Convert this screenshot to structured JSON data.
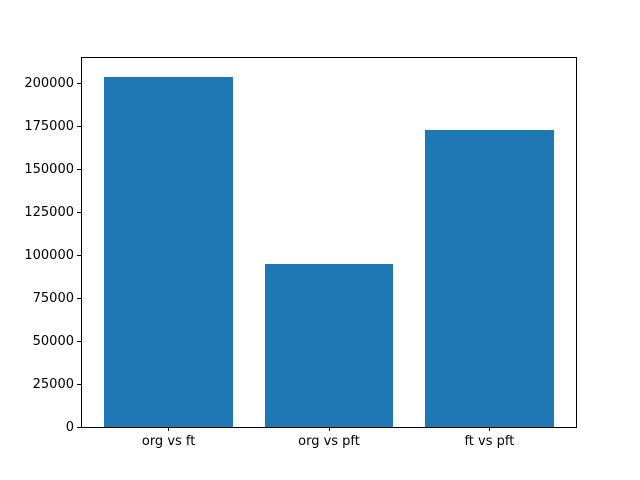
{
  "chart_data": {
    "type": "bar",
    "categories": [
      "org vs ft",
      "org vs pft",
      "ft vs pft"
    ],
    "values": [
      204000,
      95000,
      173000
    ],
    "title": "",
    "xlabel": "",
    "ylabel": "",
    "ylim": [
      0,
      214800
    ],
    "xlim": [
      -0.54,
      2.54
    ],
    "yticks": [
      0,
      25000,
      50000,
      75000,
      100000,
      125000,
      150000,
      175000,
      200000
    ],
    "bar_width_units": 0.8,
    "bar_color": "#1f77b4",
    "frame_color": "#000000",
    "grid": false,
    "legend": null
  }
}
